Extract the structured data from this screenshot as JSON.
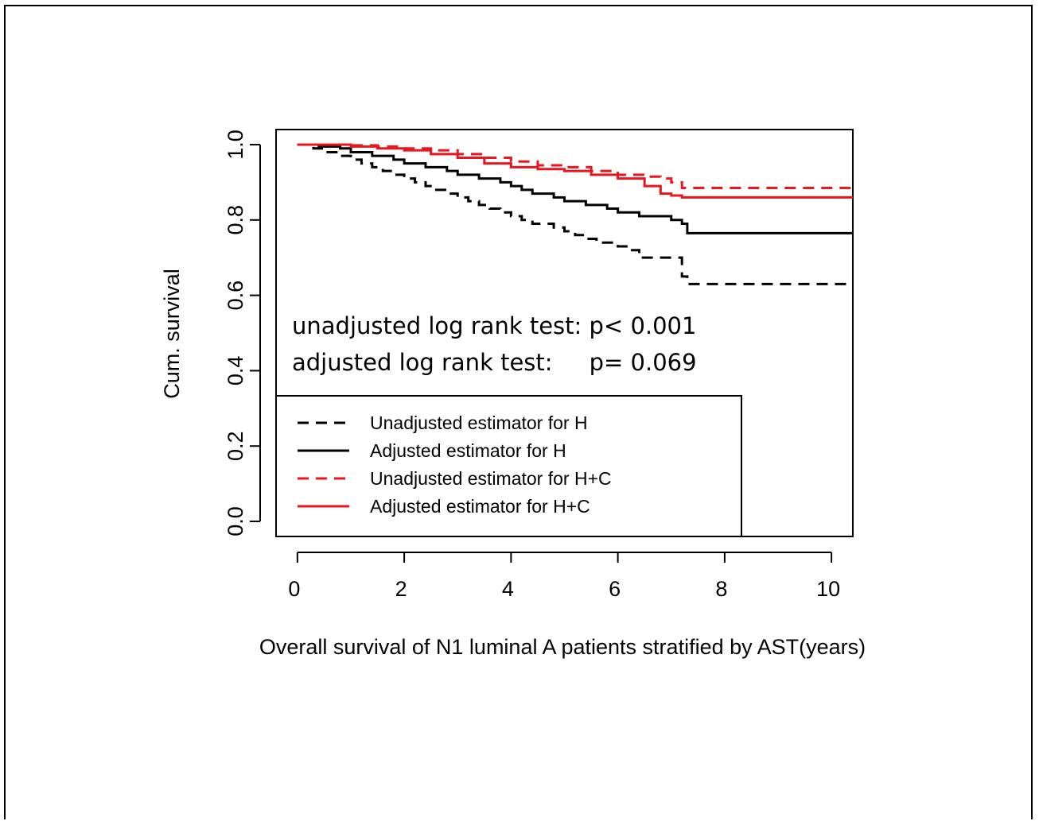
{
  "chart_data": {
    "type": "line",
    "xlabel": "Overall survival of N1 luminal A patients stratified by AST(years)",
    "ylabel": "Cum. survival",
    "xlim": [
      -0.4,
      10.4
    ],
    "ylim": [
      -0.04,
      1.04
    ],
    "x_ticks": [
      0,
      2,
      4,
      6,
      8,
      10
    ],
    "y_ticks": [
      0.0,
      0.2,
      0.4,
      0.6,
      0.8,
      1.0
    ],
    "x_tick_labels": [
      "0",
      "2",
      "4",
      "6",
      "8",
      "10"
    ],
    "y_tick_labels": [
      "0.0",
      "0.2",
      "0.4",
      "0.6",
      "0.8",
      "1.0"
    ],
    "grid": false,
    "annotations": [
      "unadjusted log rank test: p< 0.001",
      "adjusted log rank test:     p= 0.069"
    ],
    "legend_position": "bottom-left",
    "series": [
      {
        "name": "Unadjusted estimator for H",
        "color": "#000000",
        "dash": "dashed",
        "x": [
          0,
          0.3,
          0.5,
          0.8,
          1.0,
          1.2,
          1.4,
          1.6,
          1.8,
          2.0,
          2.2,
          2.4,
          2.6,
          2.8,
          3.0,
          3.2,
          3.4,
          3.6,
          3.8,
          4.0,
          4.2,
          4.4,
          4.6,
          4.8,
          5.0,
          5.2,
          5.4,
          5.6,
          5.8,
          6.0,
          6.2,
          6.4,
          6.6,
          6.8,
          7.0,
          7.2,
          7.3,
          10.4
        ],
        "y": [
          1.0,
          0.99,
          0.98,
          0.97,
          0.96,
          0.95,
          0.94,
          0.93,
          0.92,
          0.91,
          0.9,
          0.89,
          0.88,
          0.87,
          0.86,
          0.85,
          0.84,
          0.83,
          0.82,
          0.81,
          0.8,
          0.79,
          0.79,
          0.78,
          0.77,
          0.76,
          0.75,
          0.74,
          0.74,
          0.73,
          0.72,
          0.7,
          0.7,
          0.7,
          0.7,
          0.65,
          0.63,
          0.63
        ]
      },
      {
        "name": "Adjusted estimator for H",
        "color": "#000000",
        "dash": "solid",
        "x": [
          0,
          0.4,
          0.8,
          1.0,
          1.4,
          1.8,
          2.0,
          2.4,
          2.8,
          3.0,
          3.4,
          3.8,
          4.0,
          4.2,
          4.4,
          4.8,
          5.0,
          5.4,
          5.8,
          6.0,
          6.4,
          6.8,
          7.0,
          7.2,
          7.3,
          10.4
        ],
        "y": [
          1.0,
          0.995,
          0.99,
          0.98,
          0.97,
          0.96,
          0.95,
          0.94,
          0.93,
          0.92,
          0.91,
          0.9,
          0.89,
          0.88,
          0.87,
          0.86,
          0.85,
          0.84,
          0.83,
          0.82,
          0.81,
          0.81,
          0.8,
          0.79,
          0.765,
          0.765
        ]
      },
      {
        "name": "Unadjusted estimator for H+C",
        "color": "#e8161e",
        "dash": "dashed",
        "x": [
          0,
          1.0,
          1.5,
          2.0,
          2.5,
          3.0,
          3.5,
          4.0,
          4.5,
          5.0,
          5.5,
          6.0,
          6.5,
          6.8,
          7.0,
          7.2,
          10.4
        ],
        "y": [
          1.0,
          0.998,
          0.995,
          0.99,
          0.985,
          0.975,
          0.965,
          0.955,
          0.945,
          0.94,
          0.93,
          0.92,
          0.915,
          0.91,
          0.9,
          0.885,
          0.885
        ]
      },
      {
        "name": "Adjusted estimator for H+C",
        "color": "#e8161e",
        "dash": "solid",
        "x": [
          0,
          1.0,
          1.5,
          2.0,
          2.5,
          3.0,
          3.5,
          4.0,
          4.5,
          5.0,
          5.5,
          6.0,
          6.5,
          6.8,
          7.0,
          7.2,
          10.4
        ],
        "y": [
          1.0,
          0.995,
          0.99,
          0.985,
          0.975,
          0.965,
          0.95,
          0.94,
          0.935,
          0.93,
          0.92,
          0.91,
          0.89,
          0.87,
          0.865,
          0.86,
          0.86
        ]
      }
    ]
  }
}
